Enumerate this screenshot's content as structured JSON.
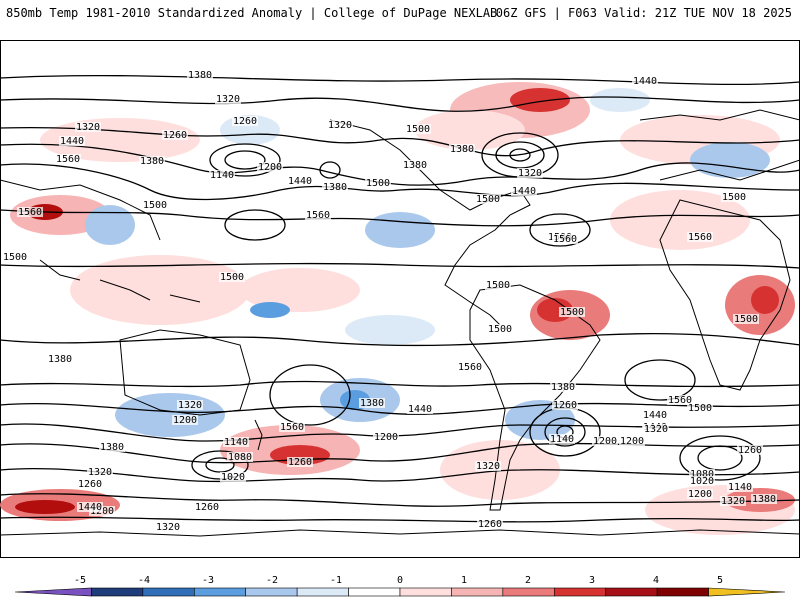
{
  "header": {
    "left_title": "850mb Temp 1981-2010 Standardized Anomaly | College of DuPage NEXLAB",
    "right_title": "06Z GFS | F063 Valid: 21Z TUE NOV 18 2025"
  },
  "colors": {
    "coast": "#000000",
    "contour": "#000000",
    "warm": [
      "#ffdede",
      "#f7b4b4",
      "#ea7b7b",
      "#d63232",
      "#b20e0e",
      "#7f0000"
    ],
    "cold": [
      "#dce9f7",
      "#a9c8ec",
      "#5b9ee0",
      "#2f78c8",
      "#1e4e9a",
      "#6a3db0"
    ]
  },
  "colorbar": {
    "ticks": [
      "-5",
      "-4",
      "-3",
      "-2",
      "-1",
      "0",
      "1",
      "2",
      "3",
      "4",
      "5"
    ],
    "colors": [
      "#7a52bf",
      "#1f3d7a",
      "#2f6fb7",
      "#5b9ee0",
      "#a9c8ec",
      "#dce9f7",
      "#ffffff",
      "#ffdede",
      "#f7b4b4",
      "#ea7b7b",
      "#d63232",
      "#a50f15",
      "#7f0000",
      "#f0c020"
    ]
  },
  "contour_labels": [
    "1380",
    "1320",
    "1260",
    "1320",
    "1440",
    "1560",
    "1380",
    "1260",
    "1200",
    "1140",
    "1440",
    "1380",
    "1320",
    "1500",
    "1380",
    "1500",
    "1380",
    "1320",
    "1440",
    "1500",
    "1560",
    "1500",
    "1440",
    "1560",
    "1560",
    "1500",
    "1500",
    "1560",
    "1500",
    "1500",
    "1500",
    "1500",
    "1560",
    "1500",
    "1500",
    "1380",
    "1320",
    "1200",
    "1140",
    "1080",
    "1020",
    "1380",
    "1320",
    "1260",
    "1200",
    "1440",
    "1560",
    "1380",
    "1200",
    "1260",
    "1320",
    "1440",
    "1380",
    "1260",
    "1140",
    "1200",
    "1440",
    "1560",
    "1500",
    "1440",
    "1320",
    "1200",
    "1260",
    "1080",
    "1020",
    "1140",
    "1200",
    "1320",
    "1380",
    "1260",
    "1320",
    "1260"
  ]
}
